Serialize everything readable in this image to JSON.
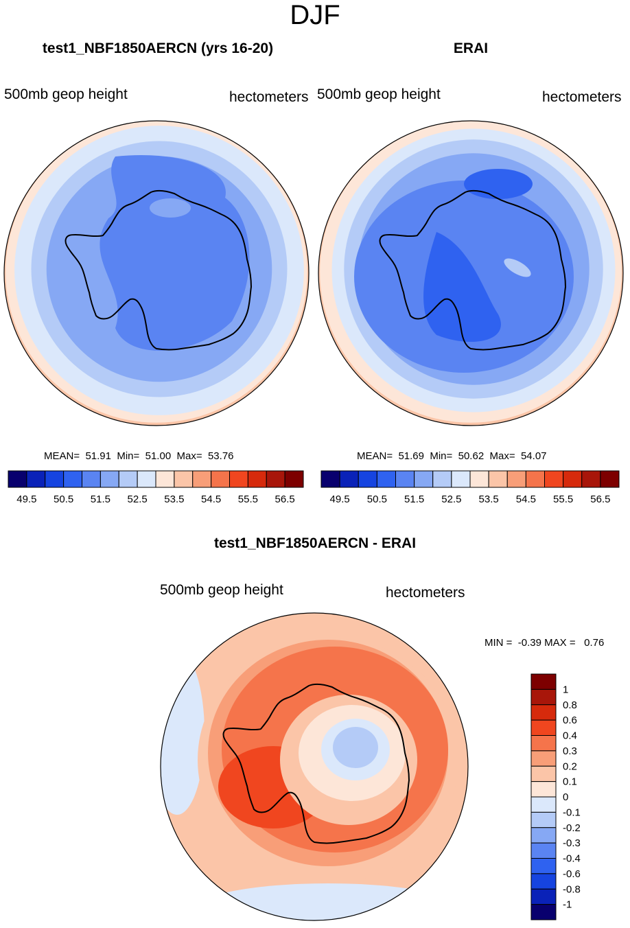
{
  "figure": {
    "season": "DJF"
  },
  "palette": {
    "colors": [
      "#08006e",
      "#0a22b8",
      "#1644e0",
      "#2f62f0",
      "#5a84f2",
      "#86a8f4",
      "#b4cbf7",
      "#dbe8fb",
      "#fde6d8",
      "#fbc5a8",
      "#f89e78",
      "#f5744b",
      "#f0461f",
      "#d62a0c",
      "#a8160a",
      "#7d0000"
    ],
    "coastline": "#000000"
  },
  "chart_data": [
    {
      "type": "heatmap",
      "title": "test1_NBF1850AERCN (yrs 16-20)",
      "variable": "500mb geop height",
      "units": "hectometers",
      "projection": "south-polar-stereographic",
      "stats": {
        "mean_label": "MEAN=",
        "mean": "51.91",
        "min_label": "Min=",
        "min": "51.00",
        "max_label": "Max=",
        "max": "53.76"
      },
      "contour_levels": [
        49.5,
        50.0,
        50.5,
        51.0,
        51.5,
        52.0,
        52.5,
        53.0,
        53.5,
        54.0,
        54.5,
        55.0,
        55.5,
        56.0,
        56.5
      ],
      "colorbar_tick_labels": [
        "49.5",
        "50.5",
        "51.5",
        "52.5",
        "53.5",
        "54.5",
        "55.5",
        "56.5"
      ],
      "colorbar_orientation": "horizontal"
    },
    {
      "type": "heatmap",
      "title": "ERAI",
      "variable": "500mb geop height",
      "units": "hectometers",
      "projection": "south-polar-stereographic",
      "stats": {
        "mean_label": "MEAN=",
        "mean": "51.69",
        "min_label": "Min=",
        "min": "50.62",
        "max_label": "Max=",
        "max": "54.07"
      },
      "contour_levels": [
        49.5,
        50.0,
        50.5,
        51.0,
        51.5,
        52.0,
        52.5,
        53.0,
        53.5,
        54.0,
        54.5,
        55.0,
        55.5,
        56.0,
        56.5
      ],
      "colorbar_tick_labels": [
        "49.5",
        "50.5",
        "51.5",
        "52.5",
        "53.5",
        "54.5",
        "55.5",
        "56.5"
      ],
      "colorbar_orientation": "horizontal"
    },
    {
      "type": "heatmap",
      "title": "test1_NBF1850AERCN - ERAI",
      "variable": "500mb geop height",
      "units": "hectometers",
      "projection": "south-polar-stereographic",
      "stats": {
        "min_label": "MIN =",
        "min": "-0.39",
        "max_label": "MAX =",
        "max": "0.76"
      },
      "contour_levels": [
        -1,
        -0.8,
        -0.6,
        -0.4,
        -0.3,
        -0.2,
        -0.1,
        0,
        0.1,
        0.2,
        0.3,
        0.4,
        0.6,
        0.8,
        1
      ],
      "colorbar_tick_labels": [
        "1",
        "0.8",
        "0.6",
        "0.4",
        "0.3",
        "0.2",
        "0.1",
        "0",
        "-0.1",
        "-0.2",
        "-0.3",
        "-0.4",
        "-0.6",
        "-0.8",
        "-1"
      ],
      "colorbar_orientation": "vertical"
    }
  ]
}
